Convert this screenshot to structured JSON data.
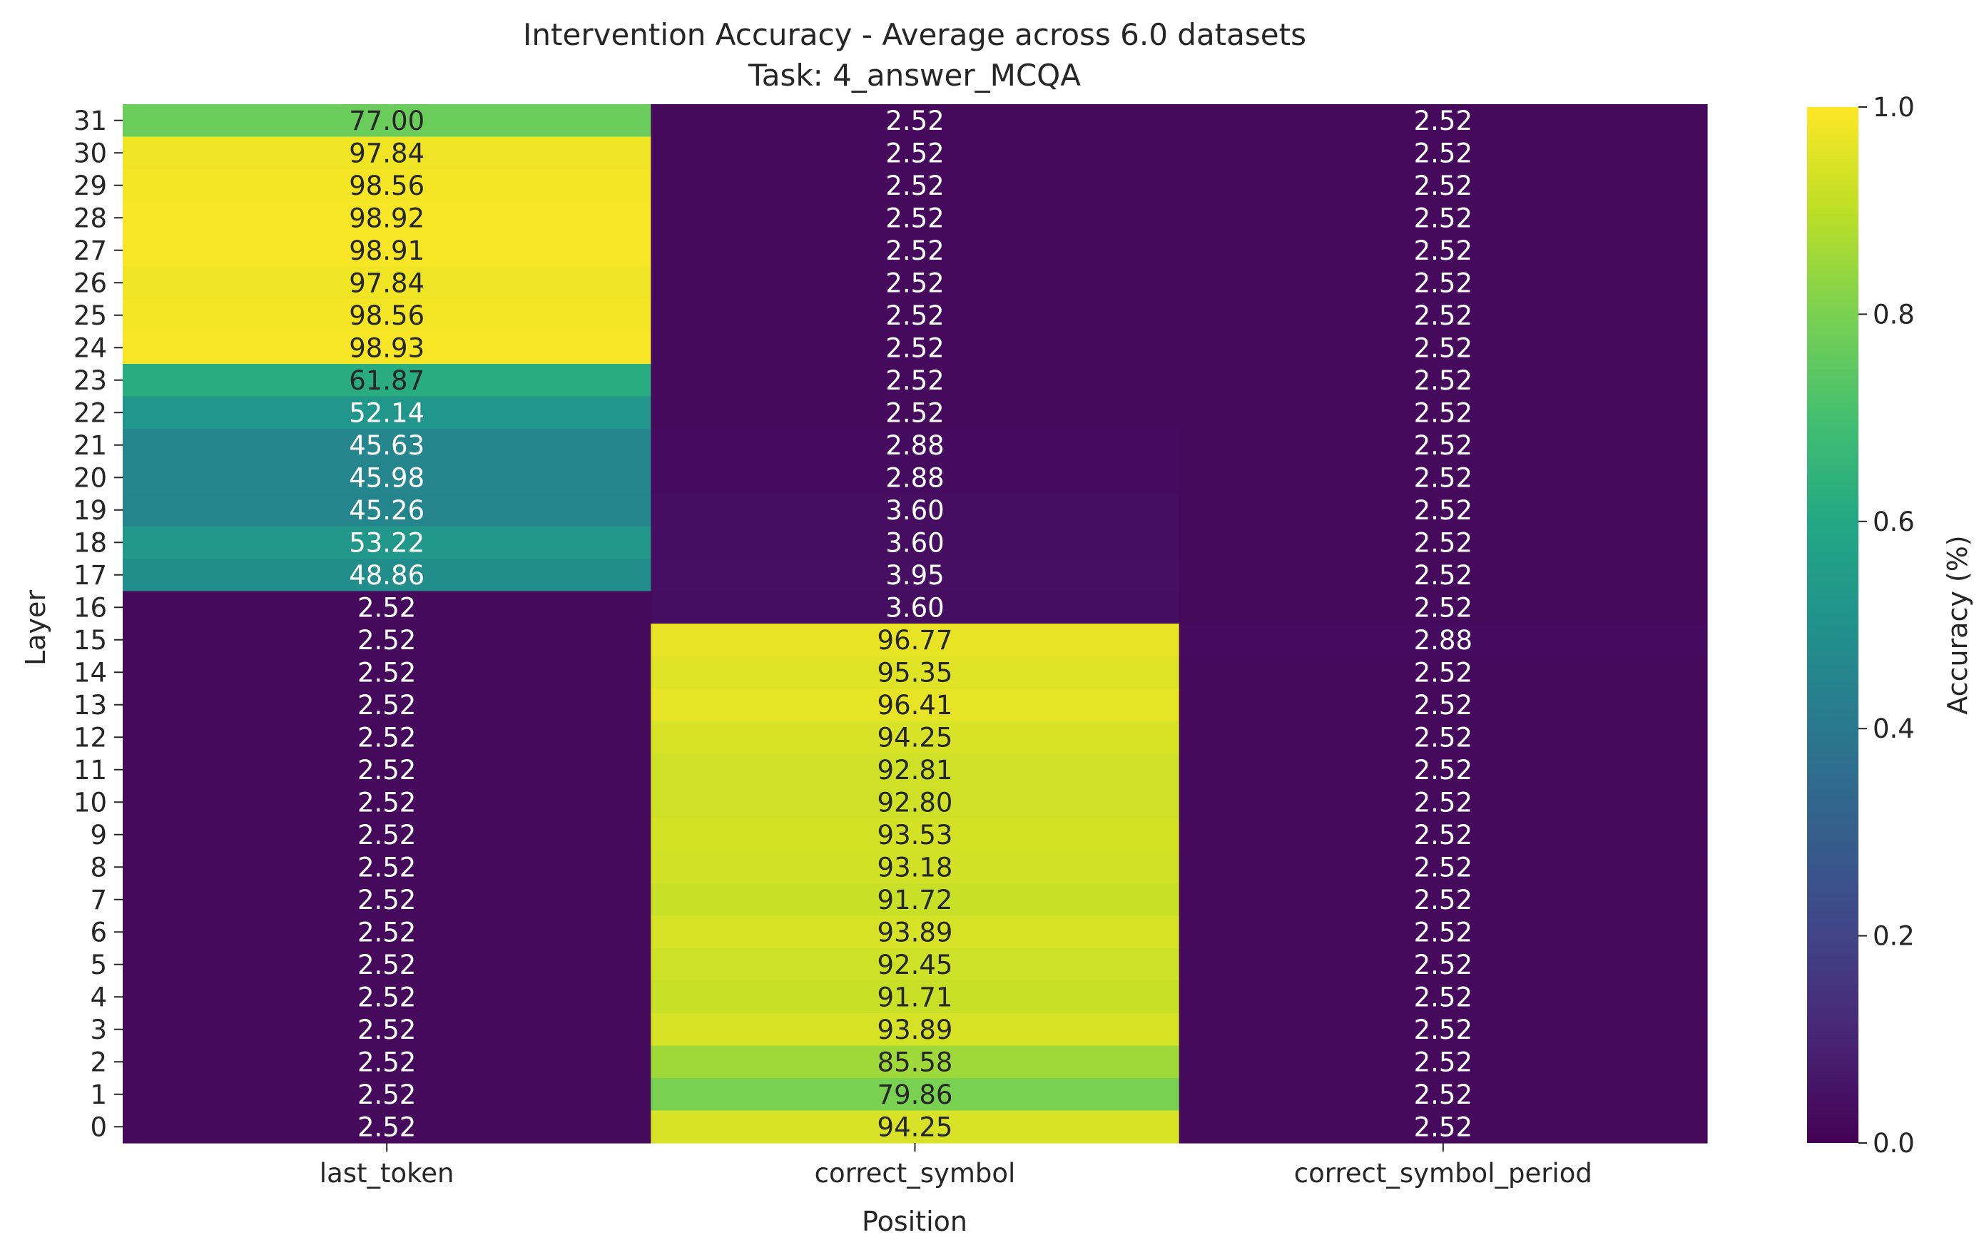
{
  "chart_data": {
    "type": "heatmap",
    "title": "Intervention Accuracy - Average across 6.0 datasets",
    "subtitle": "Task: 4_answer_MCQA",
    "xlabel": "Position",
    "ylabel": "Layer",
    "colorbar_label": "Accuracy (%)",
    "colormap": "viridis",
    "color_range": [
      0.0,
      1.0
    ],
    "colorbar_ticks": [
      "0.0",
      "0.2",
      "0.4",
      "0.6",
      "0.8",
      "1.0"
    ],
    "columns": [
      "last_token",
      "correct_symbol",
      "correct_symbol_period"
    ],
    "rows": [
      "31",
      "30",
      "29",
      "28",
      "27",
      "26",
      "25",
      "24",
      "23",
      "22",
      "21",
      "20",
      "19",
      "18",
      "17",
      "16",
      "15",
      "14",
      "13",
      "12",
      "11",
      "10",
      "9",
      "8",
      "7",
      "6",
      "5",
      "4",
      "3",
      "2",
      "1",
      "0"
    ],
    "values": [
      [
        "77.00",
        "2.52",
        "2.52"
      ],
      [
        "97.84",
        "2.52",
        "2.52"
      ],
      [
        "98.56",
        "2.52",
        "2.52"
      ],
      [
        "98.92",
        "2.52",
        "2.52"
      ],
      [
        "98.91",
        "2.52",
        "2.52"
      ],
      [
        "97.84",
        "2.52",
        "2.52"
      ],
      [
        "98.56",
        "2.52",
        "2.52"
      ],
      [
        "98.93",
        "2.52",
        "2.52"
      ],
      [
        "61.87",
        "2.52",
        "2.52"
      ],
      [
        "52.14",
        "2.52",
        "2.52"
      ],
      [
        "45.63",
        "2.88",
        "2.52"
      ],
      [
        "45.98",
        "2.88",
        "2.52"
      ],
      [
        "45.26",
        "3.60",
        "2.52"
      ],
      [
        "53.22",
        "3.60",
        "2.52"
      ],
      [
        "48.86",
        "3.95",
        "2.52"
      ],
      [
        "2.52",
        "3.60",
        "2.52"
      ],
      [
        "2.52",
        "96.77",
        "2.88"
      ],
      [
        "2.52",
        "95.35",
        "2.52"
      ],
      [
        "2.52",
        "96.41",
        "2.52"
      ],
      [
        "2.52",
        "94.25",
        "2.52"
      ],
      [
        "2.52",
        "92.81",
        "2.52"
      ],
      [
        "2.52",
        "92.80",
        "2.52"
      ],
      [
        "2.52",
        "93.53",
        "2.52"
      ],
      [
        "2.52",
        "93.18",
        "2.52"
      ],
      [
        "2.52",
        "91.72",
        "2.52"
      ],
      [
        "2.52",
        "93.89",
        "2.52"
      ],
      [
        "2.52",
        "92.45",
        "2.52"
      ],
      [
        "2.52",
        "91.71",
        "2.52"
      ],
      [
        "2.52",
        "93.89",
        "2.52"
      ],
      [
        "2.52",
        "85.58",
        "2.52"
      ],
      [
        "2.52",
        "79.86",
        "2.52"
      ],
      [
        "2.52",
        "94.25",
        "2.52"
      ]
    ]
  }
}
